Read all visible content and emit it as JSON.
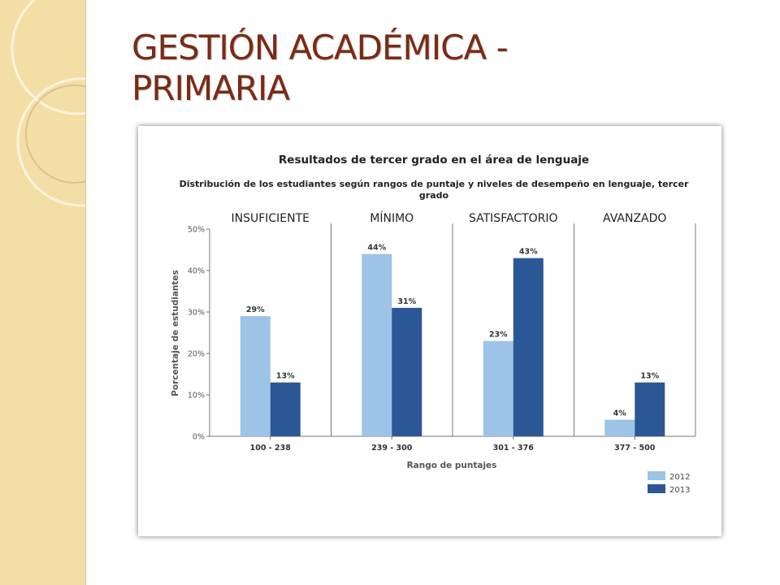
{
  "slide": {
    "title": "GESTIÓN ACADÉMICA - PRIMARIA"
  },
  "chart_data": {
    "type": "bar",
    "title": "Resultados de tercer grado en el área de lenguaje",
    "subtitle_line1": "Distribución de los estudiantes según rangos de puntaje y niveles de desempeño en lenguaje, tercer",
    "subtitle_line2": "grado",
    "xlabel": "Rango de puntajes",
    "ylabel": "Porcentaje de estudiantes",
    "ylim": [
      0,
      50
    ],
    "yticks": [
      "0%",
      "10%",
      "20%",
      "30%",
      "40%",
      "50%"
    ],
    "grid": false,
    "legend_position": "bottom-right",
    "levels": [
      "INSUFICIENTE",
      "MÍNIMO",
      "SATISFACTORIO",
      "AVANZADO"
    ],
    "categories": [
      "100 - 238",
      "239 - 300",
      "301 - 376",
      "377 - 500"
    ],
    "series": [
      {
        "name": "2012",
        "color": "#9dc3e6",
        "values": [
          29,
          44,
          23,
          4
        ],
        "labels": [
          "29%",
          "44%",
          "23%",
          "4%"
        ]
      },
      {
        "name": "2013",
        "color": "#2b5797",
        "values": [
          13,
          31,
          43,
          13
        ],
        "labels": [
          "13%",
          "31%",
          "43%",
          "13%"
        ]
      }
    ]
  }
}
